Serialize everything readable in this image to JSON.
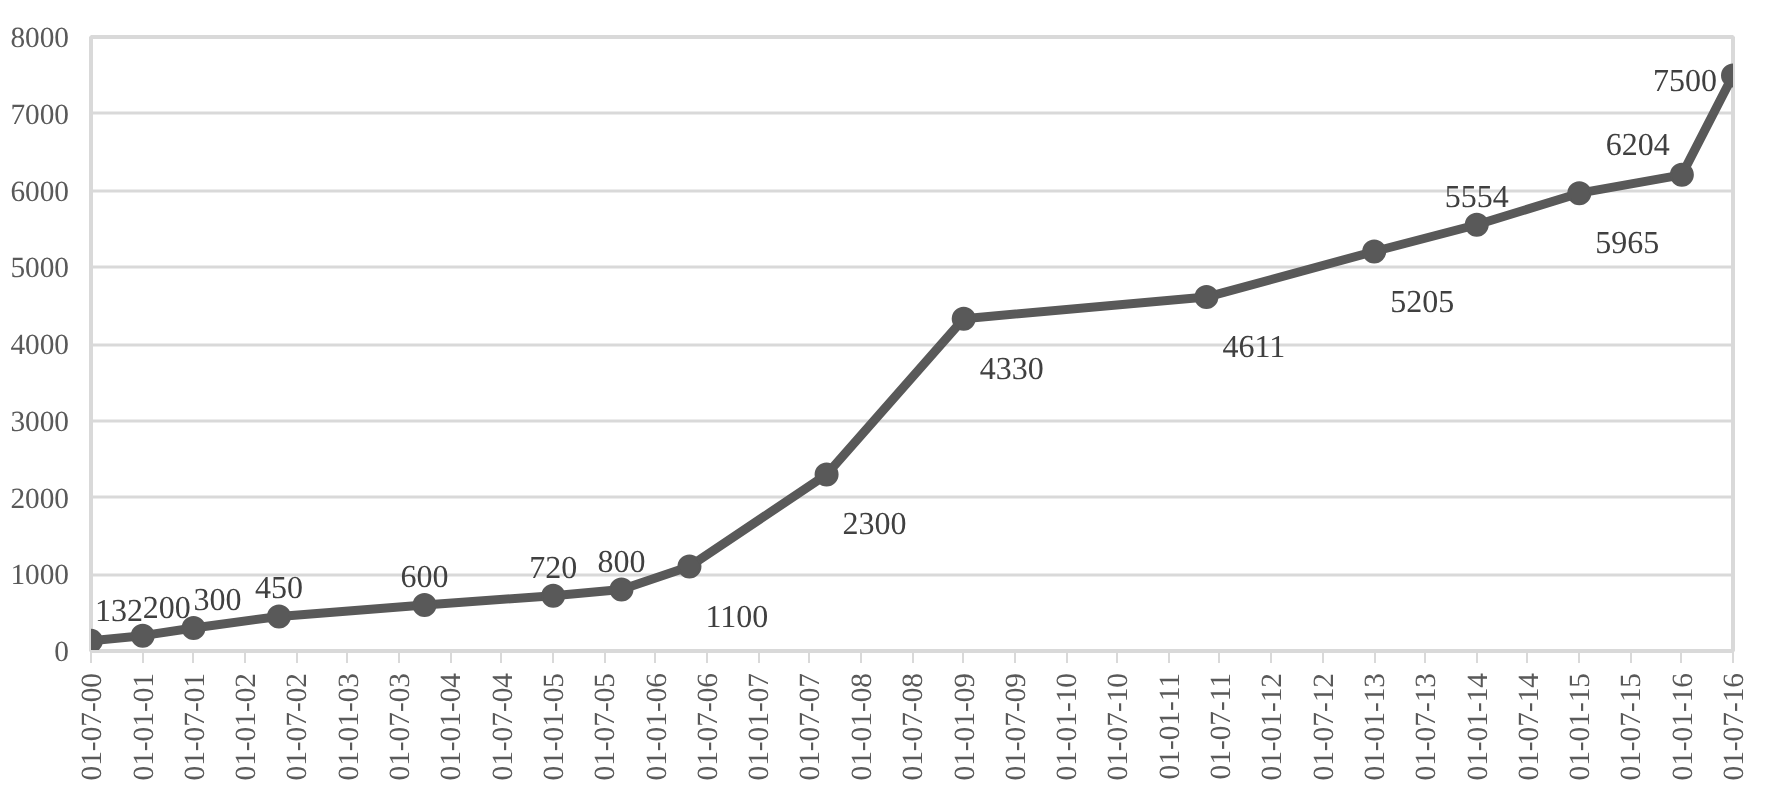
{
  "chart_data": {
    "type": "line",
    "x": [
      "2000-07-01",
      "2001-01-01",
      "2001-07-01",
      "2002-05-01",
      "2003-10-01",
      "2005-01-01",
      "2005-09-01",
      "2006-05-01",
      "2007-09-01",
      "2009-01-01",
      "2011-05-15",
      "2013-01-01",
      "2014-01-01",
      "2015-01-01",
      "2016-01-01",
      "2016-07-01"
    ],
    "series": [
      {
        "color": "#595959",
        "values": [
          132,
          200,
          300,
          450,
          600,
          720,
          800,
          1100,
          2300,
          4330,
          4611,
          5205,
          5554,
          5965,
          6204,
          7500
        ]
      }
    ],
    "xlim": [
      "2000-07-01",
      "2016-07-01"
    ],
    "xticks": [
      {
        "value": "2000-07-01",
        "label": "01-07-00"
      },
      {
        "value": "2001-01-01",
        "label": "01-01-01"
      },
      {
        "value": "2001-07-01",
        "label": "01-07-01"
      },
      {
        "value": "2002-01-01",
        "label": "01-01-02"
      },
      {
        "value": "2002-07-01",
        "label": "01-07-02"
      },
      {
        "value": "2003-01-01",
        "label": "01-01-03"
      },
      {
        "value": "2003-07-01",
        "label": "01-07-03"
      },
      {
        "value": "2004-01-01",
        "label": "01-01-04"
      },
      {
        "value": "2004-07-01",
        "label": "01-07-04"
      },
      {
        "value": "2005-01-01",
        "label": "01-01-05"
      },
      {
        "value": "2005-07-01",
        "label": "01-07-05"
      },
      {
        "value": "2006-01-01",
        "label": "01-01-06"
      },
      {
        "value": "2006-07-01",
        "label": "01-07-06"
      },
      {
        "value": "2007-01-01",
        "label": "01-01-07"
      },
      {
        "value": "2007-07-01",
        "label": "01-07-07"
      },
      {
        "value": "2008-01-01",
        "label": "01-01-08"
      },
      {
        "value": "2008-07-01",
        "label": "01-07-08"
      },
      {
        "value": "2009-01-01",
        "label": "01-01-09"
      },
      {
        "value": "2009-07-01",
        "label": "01-07-09"
      },
      {
        "value": "2010-01-01",
        "label": "01-01-10"
      },
      {
        "value": "2010-07-01",
        "label": "01-07-10"
      },
      {
        "value": "2011-01-01",
        "label": "01-01-11"
      },
      {
        "value": "2011-07-01",
        "label": "01-07-11"
      },
      {
        "value": "2012-01-01",
        "label": "01-01-12"
      },
      {
        "value": "2012-07-01",
        "label": "01-07-12"
      },
      {
        "value": "2013-01-01",
        "label": "01-01-13"
      },
      {
        "value": "2013-07-01",
        "label": "01-07-13"
      },
      {
        "value": "2014-01-01",
        "label": "01-01-14"
      },
      {
        "value": "2014-07-01",
        "label": "01-07-14"
      },
      {
        "value": "2015-01-01",
        "label": "01-01-15"
      },
      {
        "value": "2015-07-01",
        "label": "01-07-15"
      },
      {
        "value": "2016-01-01",
        "label": "01-01-16"
      },
      {
        "value": "2016-07-01",
        "label": "01-07-16"
      }
    ],
    "ylim": [
      0,
      8000
    ],
    "yticks": [
      0,
      1000,
      2000,
      3000,
      4000,
      5000,
      6000,
      7000,
      8000
    ],
    "grid": "y",
    "marker": "circle",
    "line_style": "solid",
    "data_labels": true
  }
}
